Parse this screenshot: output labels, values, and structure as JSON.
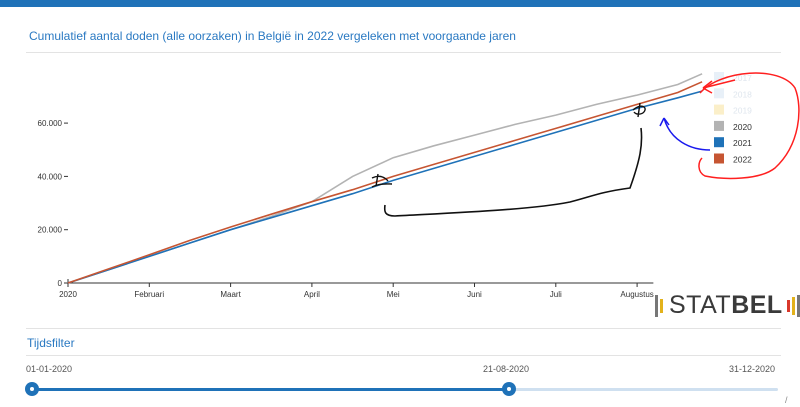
{
  "chart_data": {
    "type": "line",
    "title": "Cumulatief aantal doden (alle oorzaken) in België in 2022 vergeleken met voorgaande jaren",
    "x_ticks": [
      "2020",
      "Februari",
      "Maart",
      "April",
      "Mei",
      "Juni",
      "Juli",
      "Augustus"
    ],
    "y_ticks": [
      "0",
      "20.000",
      "40.000",
      "60.000"
    ],
    "ylim": [
      0,
      80000
    ],
    "legend_position": "right",
    "grid": false,
    "series": [
      {
        "name": "2017",
        "color": "#e8f0f8",
        "visible": false,
        "x": [],
        "y": []
      },
      {
        "name": "2018",
        "color": "#e8f0f8",
        "visible": false,
        "x": [],
        "y": []
      },
      {
        "name": "2019",
        "color": "#fbefc9",
        "visible": false,
        "x": [],
        "y": []
      },
      {
        "name": "2020",
        "color": "#b3b3b3",
        "visible": true,
        "x": [
          0,
          0.5,
          1,
          1.5,
          2,
          2.5,
          3,
          3.5,
          4,
          4.5,
          5,
          5.5,
          6,
          6.5,
          7,
          7.5,
          7.8
        ],
        "y": [
          0,
          5000,
          10000,
          15000,
          20000,
          25000,
          30500,
          40000,
          47000,
          51500,
          55500,
          59500,
          63000,
          67000,
          70500,
          74500,
          78500
        ]
      },
      {
        "name": "2021",
        "color": "#1f72b8",
        "visible": true,
        "x": [
          0,
          0.5,
          1,
          1.5,
          2,
          2.5,
          3,
          3.5,
          4,
          4.5,
          5,
          5.5,
          6,
          6.5,
          7,
          7.5,
          7.8
        ],
        "y": [
          0,
          5000,
          10000,
          15000,
          20000,
          24500,
          29000,
          33500,
          38500,
          43000,
          47500,
          52000,
          56500,
          61000,
          65500,
          69500,
          72000
        ]
      },
      {
        "name": "2022",
        "color": "#c65532",
        "visible": true,
        "x": [
          0,
          0.5,
          1,
          1.5,
          2,
          2.5,
          3,
          3.5,
          4,
          4.5,
          5,
          5.5,
          6,
          6.5,
          7,
          7.5,
          7.8
        ],
        "y": [
          0,
          5300,
          10600,
          16000,
          21000,
          25800,
          30500,
          35000,
          40000,
          44500,
          49000,
          53500,
          58000,
          62500,
          67000,
          71500,
          75500
        ]
      }
    ]
  },
  "logo": {
    "part1": "STAT",
    "part2": "BEL"
  },
  "filter": {
    "title": "Tijdsfilter",
    "start": "01-01-2020",
    "current": "21-08-2020",
    "end": "31-12-2020",
    "position": 0.64
  },
  "corner_mark": "/"
}
